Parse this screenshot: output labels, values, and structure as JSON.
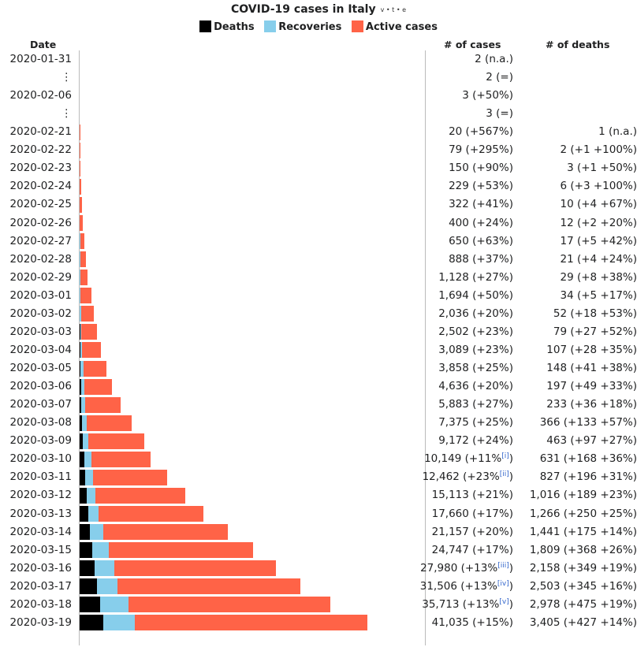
{
  "title": "COVID-19 cases in Italy",
  "vte": "v • t • e",
  "legend": [
    {
      "label": "Deaths",
      "color": "#000000"
    },
    {
      "label": "Recoveries",
      "color": "#87ceeb"
    },
    {
      "label": "Active cases",
      "color": "#ff6347"
    }
  ],
  "headers": {
    "date": "Date",
    "cases": "# of cases",
    "deaths": "# of deaths"
  },
  "chart_data": {
    "type": "bar",
    "orientation": "horizontal",
    "stacked": true,
    "title": "COVID-19 cases in Italy",
    "categories": [
      "2020-01-31",
      "⋮",
      "2020-02-06",
      "⋮",
      "2020-02-21",
      "2020-02-22",
      "2020-02-23",
      "2020-02-24",
      "2020-02-25",
      "2020-02-26",
      "2020-02-27",
      "2020-02-28",
      "2020-02-29",
      "2020-03-01",
      "2020-03-02",
      "2020-03-03",
      "2020-03-04",
      "2020-03-05",
      "2020-03-06",
      "2020-03-07",
      "2020-03-08",
      "2020-03-09",
      "2020-03-10",
      "2020-03-11",
      "2020-03-12",
      "2020-03-13",
      "2020-03-14",
      "2020-03-15",
      "2020-03-16",
      "2020-03-17",
      "2020-03-18",
      "2020-03-19"
    ],
    "series": [
      {
        "name": "Deaths",
        "color": "#000000",
        "values": [
          0,
          0,
          0,
          0,
          1,
          2,
          3,
          6,
          10,
          12,
          17,
          21,
          29,
          34,
          52,
          79,
          107,
          148,
          197,
          233,
          366,
          463,
          631,
          827,
          1016,
          1266,
          1441,
          1809,
          2158,
          2503,
          2978,
          3405
        ]
      },
      {
        "name": "Recoveries",
        "color": "#87ceeb",
        "values": [
          0,
          0,
          0,
          0,
          0,
          1,
          1,
          1,
          1,
          3,
          45,
          46,
          50,
          83,
          149,
          160,
          276,
          414,
          523,
          589,
          622,
          724,
          1004,
          1045,
          1258,
          1439,
          1966,
          2335,
          2749,
          2941,
          4025,
          4440
        ]
      },
      {
        "name": "Active cases",
        "color": "#ff6347",
        "values": [
          2,
          2,
          3,
          3,
          19,
          76,
          146,
          222,
          311,
          385,
          588,
          821,
          1049,
          1577,
          1835,
          2263,
          2706,
          3296,
          3916,
          5061,
          6387,
          7985,
          8514,
          10590,
          12839,
          14955,
          17750,
          20603,
          23073,
          26062,
          28710,
          33190
        ]
      }
    ],
    "xlim": [
      0,
      44000
    ],
    "table": {
      "cases": [
        "2 (n.a.)",
        "2 (=)",
        "3 (+50%)",
        "3 (=)",
        "20 (+567%)",
        "79 (+295%)",
        "150 (+90%)",
        "229 (+53%)",
        "322 (+41%)",
        "400 (+24%)",
        "650 (+63%)",
        "888 (+37%)",
        "1,128 (+27%)",
        "1,694 (+50%)",
        "2,036 (+20%)",
        "2,502 (+23%)",
        "3,089 (+23%)",
        "3,858 (+25%)",
        "4,636 (+20%)",
        "5,883 (+27%)",
        "7,375 (+25%)",
        "9,172 (+24%)",
        "10,149 (+11%",
        "12,462 (+23%",
        "15,113 (+21%)",
        "17,660 (+17%)",
        "21,157 (+20%)",
        "24,747 (+17%)",
        "27,980 (+13%",
        "31,506 (+13%",
        "35,713 (+13%",
        "41,035 (+15%)"
      ],
      "case_notes": [
        "",
        "",
        "",
        "",
        "",
        "",
        "",
        "",
        "",
        "",
        "",
        "",
        "",
        "",
        "",
        "",
        "",
        "",
        "",
        "",
        "",
        "",
        "[i]",
        "[ii]",
        "",
        "",
        "",
        "",
        "[iii]",
        "[iv]",
        "[v]",
        ""
      ],
      "case_suffix": [
        "",
        "",
        "",
        "",
        "",
        "",
        "",
        "",
        "",
        "",
        "",
        "",
        "",
        "",
        "",
        "",
        "",
        "",
        "",
        "",
        "",
        "",
        ")",
        ")",
        "",
        "",
        "",
        "",
        ")",
        ")",
        ")",
        ""
      ],
      "deaths": [
        "",
        "",
        "",
        "",
        "1 (n.a.)",
        "2 (+1 +100%)",
        "3 (+1 +50%)",
        "6 (+3 +100%)",
        "10 (+4 +67%)",
        "12 (+2 +20%)",
        "17 (+5 +42%)",
        "21 (+4 +24%)",
        "29 (+8 +38%)",
        "34 (+5 +17%)",
        "52 (+18 +53%)",
        "79 (+27 +52%)",
        "107 (+28 +35%)",
        "148 (+41 +38%)",
        "197 (+49 +33%)",
        "233 (+36 +18%)",
        "366 (+133 +57%)",
        "463 (+97 +27%)",
        "631 (+168 +36%)",
        "827 (+196 +31%)",
        "1,016 (+189 +23%)",
        "1,266 (+250 +25%)",
        "1,441 (+175 +14%)",
        "1,809 (+368 +26%)",
        "2,158 (+349 +19%)",
        "2,503 (+345 +16%)",
        "2,978 (+475 +19%)",
        "3,405 (+427 +14%)"
      ]
    }
  }
}
